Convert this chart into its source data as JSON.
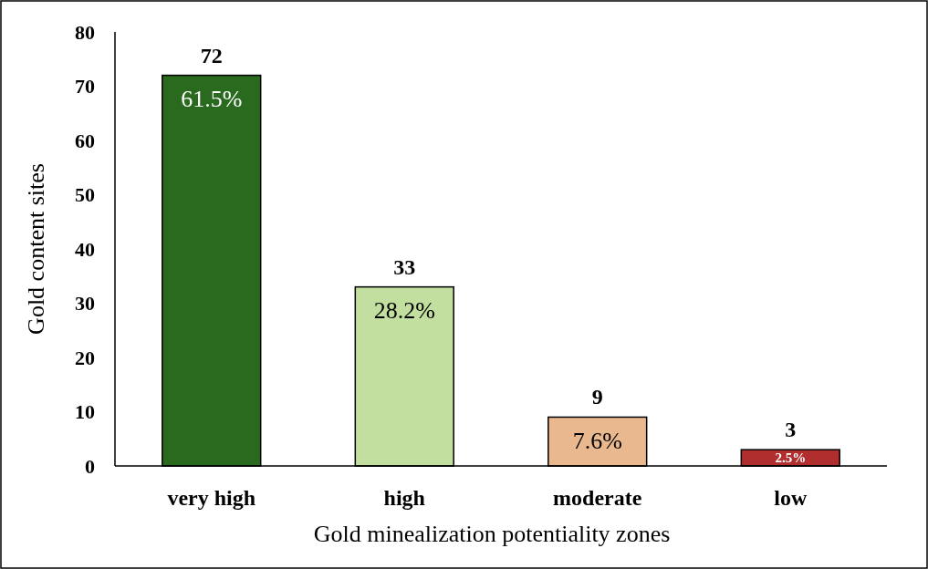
{
  "chart_data": {
    "type": "bar",
    "categories": [
      "very high",
      "high",
      "moderate",
      "low"
    ],
    "values": [
      72,
      33,
      9,
      3
    ],
    "colors": [
      "#2a6a1e",
      "#c3dfa0",
      "#e9b88f",
      "#b02e2e"
    ],
    "ylim": [
      0,
      80
    ],
    "yticks": [
      0,
      10,
      20,
      30,
      40,
      50,
      60,
      70,
      80
    ],
    "xlabel": "Gold minealization potentiality zones",
    "ylabel": "Gold content sites",
    "data_labels": true,
    "grid": false,
    "annotations": [
      {
        "text": "61.5%",
        "x": "very high",
        "y": 72
      },
      {
        "text": "28.2%",
        "x": "high",
        "y": 33
      },
      {
        "text": "7.6%",
        "x": "moderate",
        "y": 9
      },
      {
        "text": "2.5%",
        "x": "low",
        "y": 3
      }
    ]
  }
}
